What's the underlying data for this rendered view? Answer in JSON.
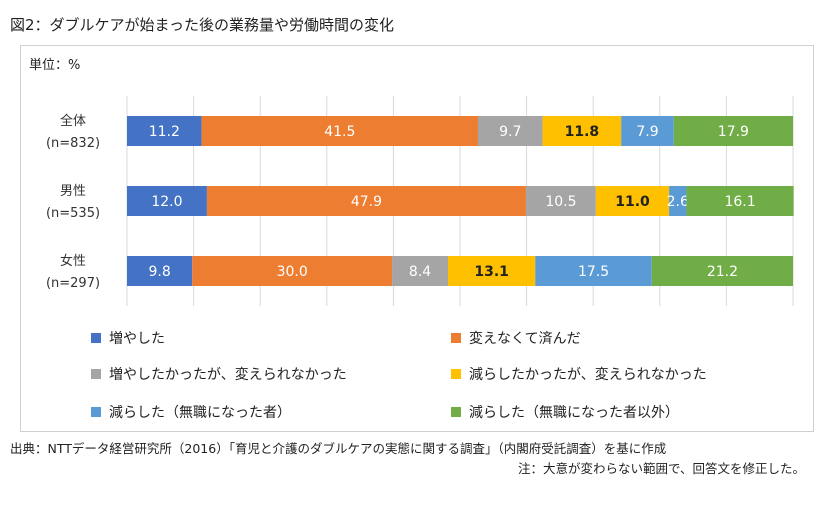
{
  "title": "図2：ダブルケアが始まった後の業務量や労働時間の変化",
  "unit_label": "単位：%",
  "source": "出典：NTTデータ経営研究所（2016）「育児と介護のダブルケアの実態に関する調査」（内閣府受託調査）を基に作成",
  "note": "注：大意が変わらない範囲で、回答文を修正した。",
  "chart_data": {
    "type": "bar",
    "orientation": "horizontal",
    "stacked": true,
    "xlim": [
      0,
      100
    ],
    "grid": true,
    "legend_position": "bottom",
    "categories": [
      {
        "label": "全体",
        "sublabel": "(n=832)"
      },
      {
        "label": "男性",
        "sublabel": "(n=535)"
      },
      {
        "label": "女性",
        "sublabel": "(n=297)"
      }
    ],
    "series": [
      {
        "name": "増やした",
        "color": "#4472c4",
        "label_color": "#ffffff",
        "values": [
          11.2,
          12.0,
          9.8
        ]
      },
      {
        "name": "変えなくて済んだ",
        "color": "#ed7d31",
        "label_color": "#ffffff",
        "values": [
          41.5,
          47.9,
          30.0
        ]
      },
      {
        "name": "増やしたかったが、変えられなかった",
        "color": "#a5a5a5",
        "label_color": "#ffffff",
        "values": [
          9.7,
          10.5,
          8.4
        ]
      },
      {
        "name": "減らしたかったが、変えられなかった",
        "color": "#ffc000",
        "label_color": "#222222",
        "values": [
          11.8,
          11.0,
          13.1
        ]
      },
      {
        "name": "減らした（無職になった者）",
        "color": "#5b9bd5",
        "label_color": "#ffffff",
        "values": [
          7.9,
          2.6,
          17.5
        ]
      },
      {
        "name": "減らした（無職になった者以外）",
        "color": "#70ad47",
        "label_color": "#ffffff",
        "values": [
          17.9,
          16.1,
          21.2
        ]
      }
    ]
  }
}
